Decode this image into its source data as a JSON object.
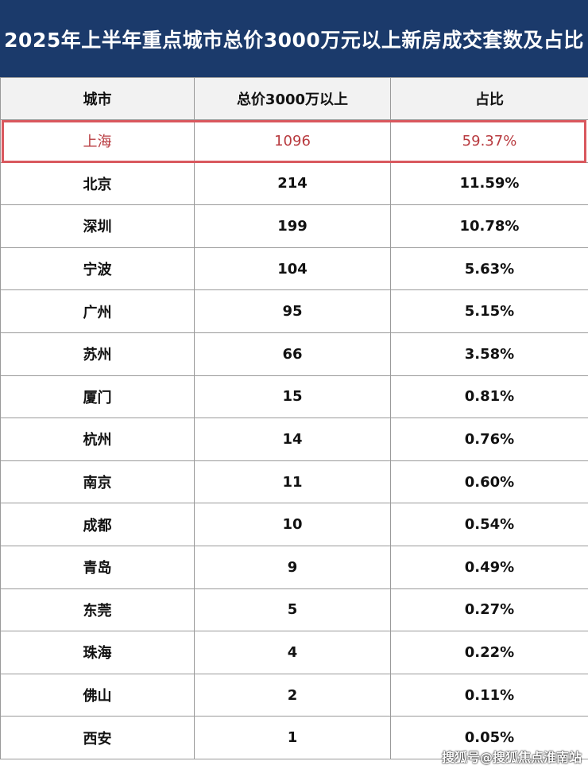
{
  "chart_data": {
    "type": "table",
    "title": "2025年上半年重点城市总价3000万元以上新房成交套数及占比",
    "columns": [
      "城市",
      "总价3000万以上",
      "占比"
    ],
    "rows": [
      [
        "上海",
        "1096",
        "59.37%"
      ],
      [
        "北京",
        "214",
        "11.59%"
      ],
      [
        "深圳",
        "199",
        "10.78%"
      ],
      [
        "宁波",
        "104",
        "5.63%"
      ],
      [
        "广州",
        "95",
        "5.15%"
      ],
      [
        "苏州",
        "66",
        "3.58%"
      ],
      [
        "厦门",
        "15",
        "0.81%"
      ],
      [
        "杭州",
        "14",
        "0.76%"
      ],
      [
        "南京",
        "11",
        "0.60%"
      ],
      [
        "成都",
        "10",
        "0.54%"
      ],
      [
        "青岛",
        "9",
        "0.49%"
      ],
      [
        "东莞",
        "5",
        "0.27%"
      ],
      [
        "珠海",
        "4",
        "0.22%"
      ],
      [
        "佛山",
        "2",
        "0.11%"
      ],
      [
        "西安",
        "1",
        "0.05%"
      ]
    ],
    "highlighted_row": "上海"
  },
  "colors": {
    "header_bg": "#1b3a6b",
    "highlight": "#d9585e",
    "highlight_text": "#b83a3f"
  },
  "watermark": "搜狐号@搜狐焦点淮南站"
}
